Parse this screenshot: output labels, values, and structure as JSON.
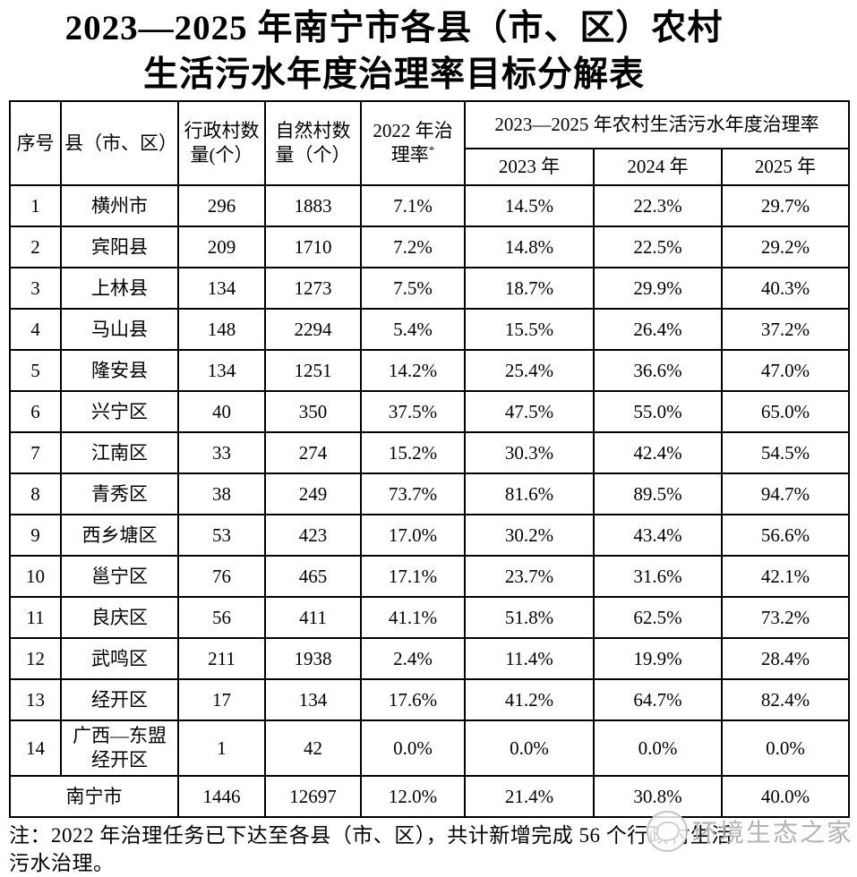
{
  "title": {
    "line1": "2023—2025 年南宁市各县（市、区）农村",
    "line2": "生活污水年度治理率目标分解表"
  },
  "table": {
    "header": {
      "col_no": "序号",
      "col_county": "县（市、区）",
      "col_admin_villages": "行政村数\n量(个）",
      "col_natural_villages": "自然村数\n量（个）",
      "col_rate_2022": "2022 年治\n理率",
      "col_rate_2022_marker": "*",
      "span_title": "2023—2025 年农村生活污水年度治理率",
      "col_2023": "2023 年",
      "col_2024": "2024 年",
      "col_2025": "2025 年"
    },
    "rows": [
      [
        "1",
        "横州市",
        "296",
        "1883",
        "7.1%",
        "14.5%",
        "22.3%",
        "29.7%"
      ],
      [
        "2",
        "宾阳县",
        "209",
        "1710",
        "7.2%",
        "14.8%",
        "22.5%",
        "29.2%"
      ],
      [
        "3",
        "上林县",
        "134",
        "1273",
        "7.5%",
        "18.7%",
        "29.9%",
        "40.3%"
      ],
      [
        "4",
        "马山县",
        "148",
        "2294",
        "5.4%",
        "15.5%",
        "26.4%",
        "37.2%"
      ],
      [
        "5",
        "隆安县",
        "134",
        "1251",
        "14.2%",
        "25.4%",
        "36.6%",
        "47.0%"
      ],
      [
        "6",
        "兴宁区",
        "40",
        "350",
        "37.5%",
        "47.5%",
        "55.0%",
        "65.0%"
      ],
      [
        "7",
        "江南区",
        "33",
        "274",
        "15.2%",
        "30.3%",
        "42.4%",
        "54.5%"
      ],
      [
        "8",
        "青秀区",
        "38",
        "249",
        "73.7%",
        "81.6%",
        "89.5%",
        "94.7%"
      ],
      [
        "9",
        "西乡塘区",
        "53",
        "423",
        "17.0%",
        "30.2%",
        "43.4%",
        "56.6%"
      ],
      [
        "10",
        "邕宁区",
        "76",
        "465",
        "17.1%",
        "23.7%",
        "31.6%",
        "42.1%"
      ],
      [
        "11",
        "良庆区",
        "56",
        "411",
        "41.1%",
        "51.8%",
        "62.5%",
        "73.2%"
      ],
      [
        "12",
        "武鸣区",
        "211",
        "1938",
        "2.4%",
        "11.4%",
        "19.9%",
        "28.4%"
      ],
      [
        "13",
        "经开区",
        "17",
        "134",
        "17.6%",
        "41.2%",
        "64.7%",
        "82.4%"
      ],
      [
        "14",
        "广西—东盟\n经开区",
        "1",
        "42",
        "0.0%",
        "0.0%",
        "0.0%",
        "0.0%"
      ]
    ],
    "total": {
      "label": "南宁市",
      "admin_villages": "1446",
      "natural_villages": "12697",
      "rate_2022": "12.0%",
      "rate_2023": "21.4%",
      "rate_2024": "30.8%",
      "rate_2025": "40.0%"
    }
  },
  "footnote": {
    "line1": "注：2022 年治理任务已下达至各县（市、区），共计新增完成 56 个行政村生活",
    "line2": "污水治理。"
  },
  "watermark": {
    "text": "环境生态之家",
    "color": "#b3b3b3"
  }
}
